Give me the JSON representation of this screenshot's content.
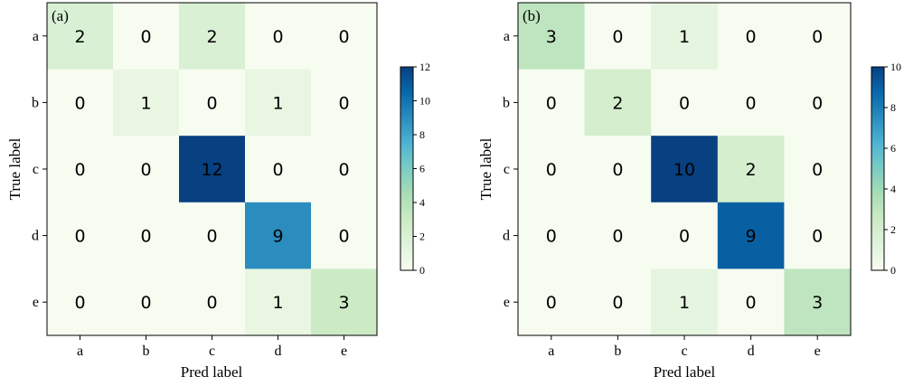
{
  "chart_data": [
    {
      "type": "heatmap",
      "panel_label": "(a)",
      "xlabel": "Pred label",
      "ylabel": "True label",
      "x_categories": [
        "a",
        "b",
        "c",
        "d",
        "e"
      ],
      "y_categories": [
        "a",
        "b",
        "c",
        "d",
        "e"
      ],
      "values": [
        [
          2,
          0,
          2,
          0,
          0
        ],
        [
          0,
          1,
          0,
          1,
          0
        ],
        [
          0,
          0,
          12,
          0,
          0
        ],
        [
          0,
          0,
          0,
          9,
          0
        ],
        [
          0,
          0,
          0,
          1,
          3
        ]
      ],
      "colorbar": {
        "min": 0,
        "max": 12,
        "ticks": [
          0,
          2,
          4,
          6,
          8,
          10,
          12
        ]
      },
      "colormap": "GnBu",
      "grid": false
    },
    {
      "type": "heatmap",
      "panel_label": "(b)",
      "xlabel": "Pred label",
      "ylabel": "True label",
      "x_categories": [
        "a",
        "b",
        "c",
        "d",
        "e"
      ],
      "y_categories": [
        "a",
        "b",
        "c",
        "d",
        "e"
      ],
      "values": [
        [
          3,
          0,
          1,
          0,
          0
        ],
        [
          0,
          2,
          0,
          0,
          0
        ],
        [
          0,
          0,
          10,
          2,
          0
        ],
        [
          0,
          0,
          0,
          9,
          0
        ],
        [
          0,
          0,
          1,
          0,
          3
        ]
      ],
      "colorbar": {
        "min": 0,
        "max": 10,
        "ticks": [
          0,
          2,
          4,
          6,
          8,
          10
        ]
      },
      "colormap": "GnBu",
      "grid": false
    }
  ]
}
